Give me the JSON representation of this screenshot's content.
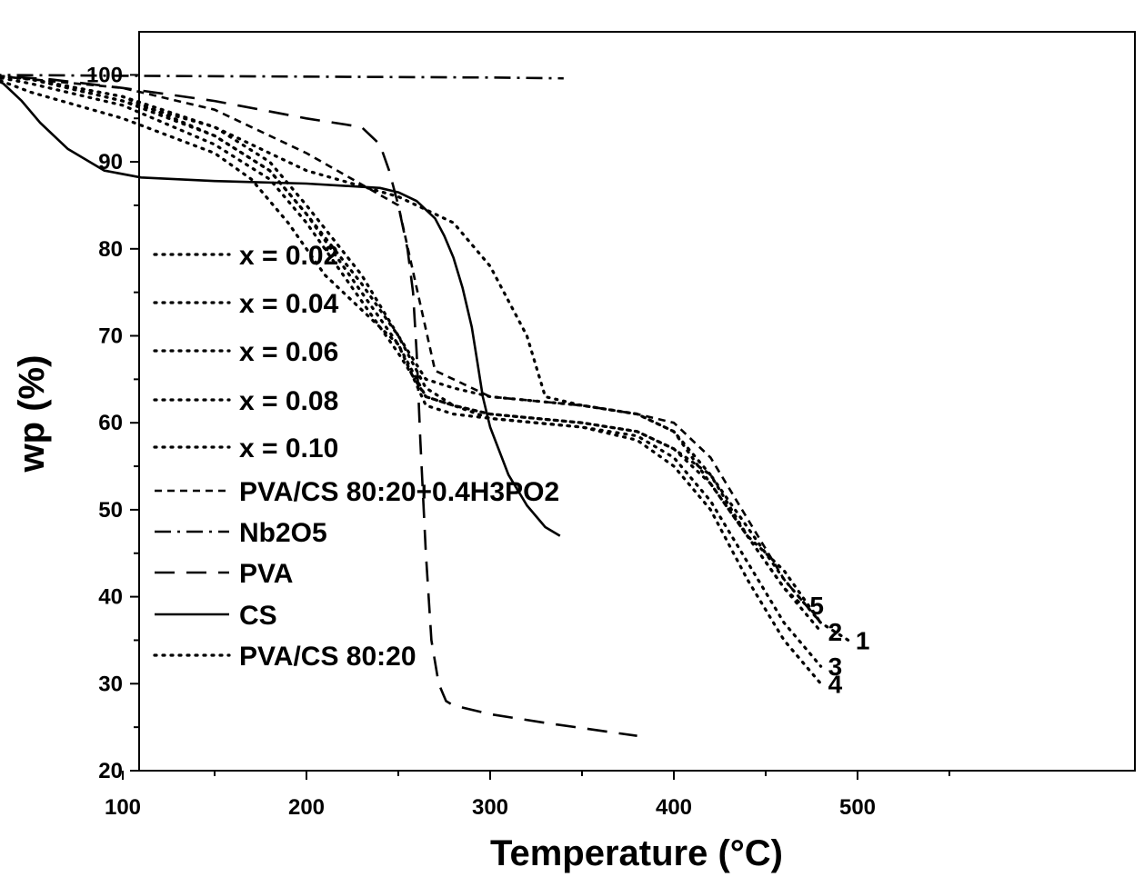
{
  "chart_data": {
    "type": "line",
    "xlabel": "Temperature (°C)",
    "ylabel": "wp  (%)",
    "xlim": [
      0,
      550
    ],
    "ylim": [
      20,
      105
    ],
    "x_ticks": [
      100,
      200,
      300,
      400,
      500
    ],
    "y_ticks": [
      20,
      30,
      40,
      50,
      60,
      70,
      80,
      90,
      100
    ],
    "grid": false,
    "legend_position": "left",
    "legend": [
      {
        "label": "x = 0.02",
        "style": "dotted"
      },
      {
        "label": "x = 0.04",
        "style": "dotted"
      },
      {
        "label": "x = 0.06",
        "style": "dotted"
      },
      {
        "label": "x = 0.08",
        "style": "dotted"
      },
      {
        "label": "x = 0.10",
        "style": "dotted"
      },
      {
        "label": "PVA/CS 80:20+0.4H3PO2",
        "style": "short-dash"
      },
      {
        "label": "Nb2O5",
        "style": "dash-dot"
      },
      {
        "label": "PVA",
        "style": "dash"
      },
      {
        "label": "CS",
        "style": "solid"
      },
      {
        "label": "PVA/CS 80:20",
        "style": "dotted"
      }
    ],
    "series": [
      {
        "style": "dotted",
        "end_label": "1",
        "x": [
          25,
          50,
          100,
          150,
          180,
          200,
          230,
          250,
          265,
          280,
          300,
          350,
          380,
          400,
          420,
          440,
          460,
          480,
          495
        ],
        "y": [
          100,
          99.5,
          97.5,
          94,
          90,
          85,
          77,
          70,
          64,
          62,
          61,
          60,
          59,
          57,
          54,
          48,
          42,
          37,
          35
        ]
      },
      {
        "style": "dotted",
        "end_label": "2",
        "x": [
          25,
          50,
          100,
          150,
          180,
          200,
          230,
          250,
          265,
          280,
          300,
          350,
          380,
          400,
          420,
          440,
          460,
          480
        ],
        "y": [
          100,
          99.5,
          97,
          93,
          89,
          84,
          75,
          69,
          63,
          62,
          61,
          60,
          59,
          57,
          53,
          47,
          41,
          36
        ]
      },
      {
        "style": "dotted",
        "end_label": "3",
        "x": [
          25,
          50,
          100,
          150,
          180,
          200,
          230,
          250,
          265,
          280,
          300,
          350,
          380,
          400,
          420,
          440,
          460,
          480
        ],
        "y": [
          100,
          99,
          96.5,
          92,
          88,
          83,
          74,
          68,
          63,
          62,
          60.5,
          59.5,
          58.5,
          56,
          51,
          44,
          37,
          32
        ]
      },
      {
        "style": "dotted",
        "end_label": "4",
        "x": [
          25,
          50,
          100,
          150,
          170,
          190,
          210,
          230,
          250,
          265,
          280,
          300,
          350,
          380,
          400,
          420,
          440,
          460,
          480
        ],
        "y": [
          100,
          98,
          95,
          91,
          88,
          83,
          77,
          73,
          69,
          62,
          61,
          60.5,
          59.5,
          58,
          55,
          50,
          42,
          35,
          30
        ]
      },
      {
        "style": "dotted",
        "end_label": "5",
        "x": [
          25,
          50,
          100,
          150,
          180,
          200,
          230,
          250,
          265,
          280,
          300,
          350,
          380,
          400,
          420,
          440,
          460,
          470
        ],
        "y": [
          100,
          99.5,
          97.5,
          93,
          89,
          84,
          76,
          70,
          65,
          64,
          63,
          62,
          61,
          59,
          54,
          47,
          41,
          39
        ]
      },
      {
        "style": "short-dash",
        "x": [
          25,
          50,
          100,
          150,
          200,
          250,
          270,
          280,
          300,
          350,
          380,
          400,
          420,
          440,
          460,
          480
        ],
        "y": [
          100,
          99.5,
          98.5,
          96,
          91,
          85,
          66,
          65,
          63,
          62,
          61,
          60,
          56,
          49,
          42,
          37
        ]
      },
      {
        "style": "dash-dot",
        "x": [
          25,
          100,
          200,
          300,
          340
        ],
        "y": [
          100,
          99.9,
          99.8,
          99.7,
          99.6
        ]
      },
      {
        "style": "dash",
        "x": [
          25,
          60,
          100,
          150,
          200,
          230,
          240,
          245,
          250,
          255,
          258,
          260,
          262,
          265,
          268,
          272,
          276,
          280,
          290,
          300,
          330,
          380
        ],
        "y": [
          100,
          99.5,
          98.5,
          97,
          95,
          94,
          92,
          89,
          85,
          80,
          75,
          68,
          58,
          45,
          35,
          30,
          28,
          27.5,
          27,
          26.5,
          25.5,
          24
        ]
      },
      {
        "style": "solid",
        "x": [
          25,
          35,
          45,
          55,
          70,
          90,
          110,
          150,
          200,
          240,
          250,
          260,
          270,
          275,
          280,
          285,
          290,
          293,
          296,
          300,
          310,
          320,
          330,
          338
        ],
        "y": [
          100,
          99,
          97,
          94.5,
          91.5,
          89,
          88.2,
          87.8,
          87.5,
          87,
          86.5,
          85.5,
          83.5,
          81.5,
          79,
          75.5,
          71,
          67,
          63,
          59.5,
          54,
          50.5,
          48,
          47
        ]
      },
      {
        "style": "dotted",
        "x": [
          25,
          50,
          100,
          150,
          200,
          250,
          270,
          280,
          300,
          320,
          330,
          350,
          380,
          400,
          420,
          440,
          460,
          480
        ],
        "y": [
          100,
          99.5,
          97,
          94,
          89,
          86,
          84,
          83,
          78,
          70,
          63,
          62,
          61,
          59,
          53,
          47,
          43,
          37
        ]
      }
    ]
  }
}
